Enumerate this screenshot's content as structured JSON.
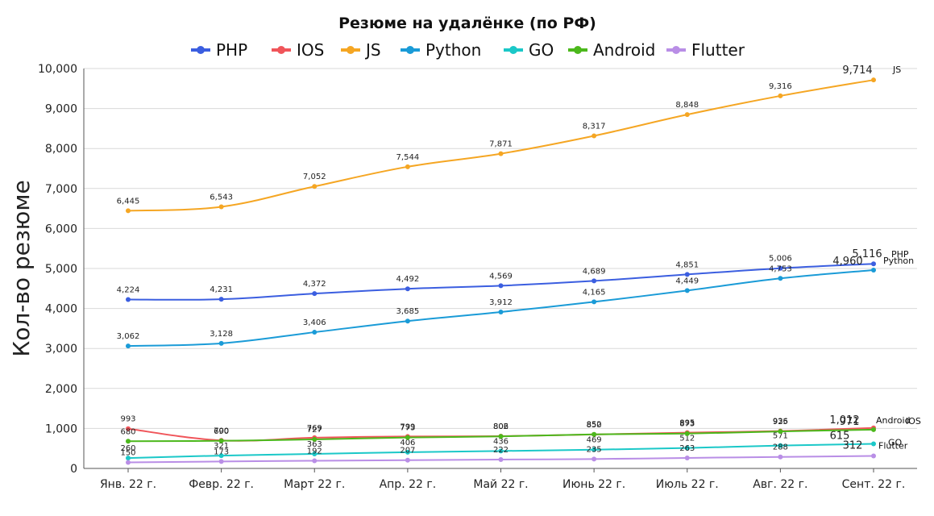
{
  "chart_data": {
    "type": "line",
    "title": "Резюме на удалёнке (по РФ)",
    "ylabel": "Кол-во резюме",
    "xlabel": "",
    "ylim": [
      0,
      10000
    ],
    "yticks": [
      0,
      1000,
      2000,
      3000,
      4000,
      5000,
      6000,
      7000,
      8000,
      9000,
      10000
    ],
    "ytick_labels": [
      "0",
      "1,000",
      "2,000",
      "3,000",
      "4,000",
      "5,000",
      "6,000",
      "7,000",
      "8,000",
      "9,000",
      "10,000"
    ],
    "grid": true,
    "legend_position": "top",
    "categories": [
      "Янв. 22 г.",
      "Февр. 22 г.",
      "Март 22 г.",
      "Апр. 22 г.",
      "Май 22 г.",
      "Июнь 22 г.",
      "Июль 22 г.",
      "Авг. 22 г.",
      "Сент. 22 г."
    ],
    "series": [
      {
        "name": "PHP",
        "color": "#3b5ee0",
        "values": [
          4224,
          4231,
          4372,
          4492,
          4569,
          4689,
          4851,
          5006,
          5116
        ],
        "labels": [
          "4,224",
          "4,231",
          "4,372",
          "4,492",
          "4,569",
          "4,689",
          "4,851",
          "5,006",
          "5,116"
        ]
      },
      {
        "name": "IOS",
        "color": "#f0555a",
        "values": [
          993,
          700,
          769,
          799,
          806,
          850,
          895,
          936,
          1012
        ],
        "labels": [
          "993",
          "700",
          "769",
          "799",
          "806",
          "850",
          "895",
          "936",
          "1,012"
        ]
      },
      {
        "name": "JS",
        "color": "#f5a623",
        "values": [
          6445,
          6543,
          7052,
          7544,
          7871,
          8317,
          8848,
          9316,
          9714
        ],
        "labels": [
          "6,445",
          "6,543",
          "7,052",
          "7,544",
          "7,871",
          "8,317",
          "8,848",
          "9,316",
          "9,714"
        ]
      },
      {
        "name": "Python",
        "color": "#1a9bd7",
        "values": [
          3062,
          3128,
          3406,
          3685,
          3912,
          4165,
          4449,
          4753,
          4960
        ],
        "labels": [
          "3,062",
          "3,128",
          "3,406",
          "3,685",
          "3,912",
          "4,165",
          "4,449",
          "4,753",
          "4,960"
        ]
      },
      {
        "name": "GO",
        "color": "#1bc8c8",
        "values": [
          260,
          321,
          363,
          406,
          436,
          469,
          512,
          571,
          615
        ],
        "labels": [
          "260",
          "321",
          "363",
          "406",
          "436",
          "469",
          "512",
          "571",
          "615"
        ]
      },
      {
        "name": "Android",
        "color": "#4cb81c",
        "values": [
          680,
          690,
          727,
          773,
          802,
          852,
          873,
          925,
          971
        ],
        "labels": [
          "680",
          "690",
          "727",
          "773",
          "802",
          "852",
          "873",
          "925",
          "971"
        ]
      },
      {
        "name": "Flutter",
        "color": "#b98ee6",
        "values": [
          150,
          173,
          192,
          207,
          222,
          235,
          263,
          288,
          312
        ],
        "labels": [
          "150",
          "173",
          "192",
          "207",
          "222",
          "235",
          "263",
          "288",
          "312"
        ]
      }
    ]
  }
}
